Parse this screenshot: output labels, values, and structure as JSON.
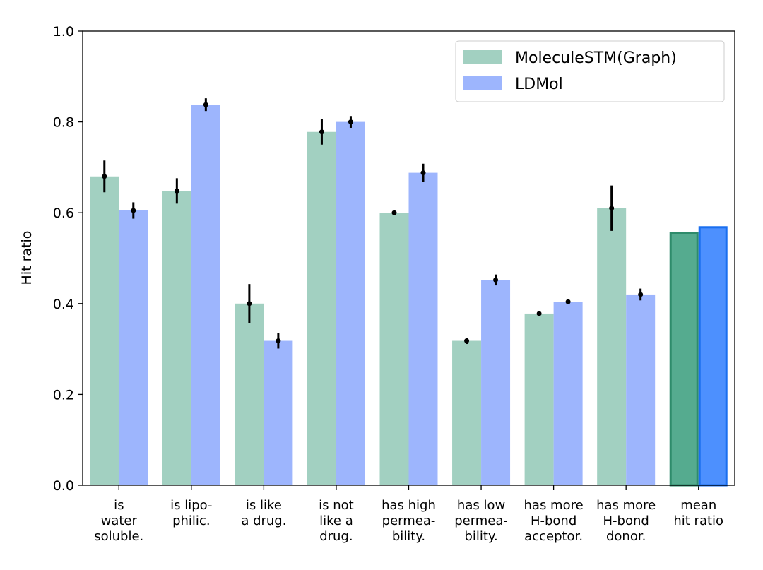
{
  "chart_data": {
    "type": "bar",
    "ylabel": "Hit ratio",
    "categories": [
      [
        "is",
        "water",
        "soluble."
      ],
      [
        "is lipo-",
        "philic."
      ],
      [
        "is like",
        "a drug."
      ],
      [
        "is not",
        "like a",
        "drug."
      ],
      [
        "has high",
        "permea-",
        "bility."
      ],
      [
        "has low",
        "permea-",
        "bility."
      ],
      [
        "has more",
        "H-bond",
        "acceptor."
      ],
      [
        "has more",
        "H-bond",
        "donor."
      ],
      [
        "mean",
        "hit ratio"
      ]
    ],
    "series": [
      {
        "name": "MoleculeSTM(Graph)",
        "color": "#a2d0c1",
        "values": [
          0.68,
          0.648,
          0.4,
          0.778,
          0.6,
          0.318,
          0.378,
          0.61,
          0.555
        ],
        "errors": [
          0.035,
          0.028,
          0.043,
          0.028,
          0.005,
          0.007,
          0.006,
          0.05,
          null
        ],
        "colors": [
          "#a2d0c1",
          "#a2d0c1",
          "#a2d0c1",
          "#a2d0c1",
          "#a2d0c1",
          "#a2d0c1",
          "#a2d0c1",
          "#a2d0c1",
          "#55ab8f"
        ],
        "edgecolors": [
          null,
          null,
          null,
          null,
          null,
          null,
          null,
          null,
          "#2e8b6b"
        ]
      },
      {
        "name": "LDMol",
        "color": "#9db5fd",
        "values": [
          0.605,
          0.838,
          0.318,
          0.8,
          0.688,
          0.452,
          0.404,
          0.42,
          0.568
        ],
        "errors": [
          0.018,
          0.014,
          0.017,
          0.013,
          0.02,
          0.012,
          0.003,
          0.013,
          null
        ],
        "colors": [
          "#9db5fd",
          "#9db5fd",
          "#9db5fd",
          "#9db5fd",
          "#9db5fd",
          "#9db5fd",
          "#9db5fd",
          "#9db5fd",
          "#4d90fe"
        ],
        "edgecolors": [
          null,
          null,
          null,
          null,
          null,
          null,
          null,
          null,
          "#1a6fef"
        ]
      }
    ],
    "ylim": [
      0,
      1.0
    ],
    "yticks": [
      {
        "value": 0,
        "label": "0.0"
      },
      0.2,
      0.4,
      0.6,
      0.8,
      {
        "value": 1.0,
        "label": "1.0"
      }
    ],
    "legend": "upper right",
    "grid": false
  }
}
